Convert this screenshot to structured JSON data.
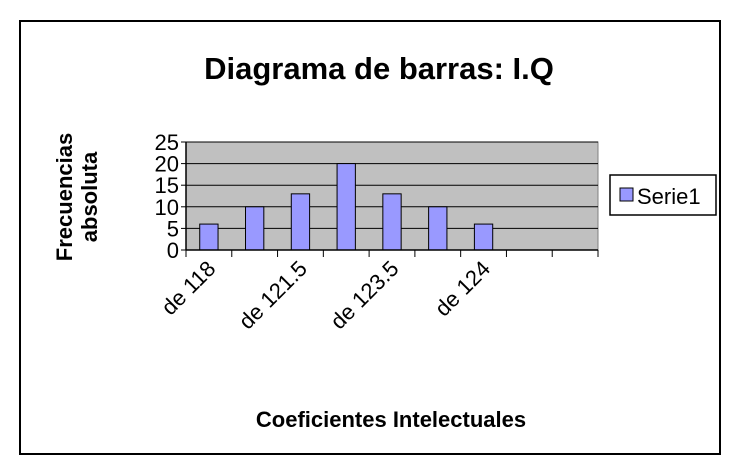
{
  "chart_data": {
    "type": "bar",
    "title": "Diagrama de barras: I.Q",
    "xlabel": "Coeficientes Intelectuales",
    "ylabel_lines": [
      "Frecuencias",
      "absoluta"
    ],
    "y_ticks": [
      "0",
      "5",
      "10",
      "15",
      "20",
      "25"
    ],
    "ylim": [
      0,
      25
    ],
    "category_labels": [
      "de 118",
      "de 121.5",
      "de 123.5",
      "de 124"
    ],
    "values": [
      6,
      10,
      13,
      20,
      13,
      10,
      6
    ],
    "series": [
      {
        "name": "Serie1",
        "values": [
          6,
          10,
          13,
          20,
          13,
          10,
          6
        ]
      }
    ],
    "legend_position": "right",
    "grid": true,
    "colors": {
      "bar": "#9999ff",
      "plot_bg": "#c0c0c0",
      "frame": "#000000"
    }
  }
}
